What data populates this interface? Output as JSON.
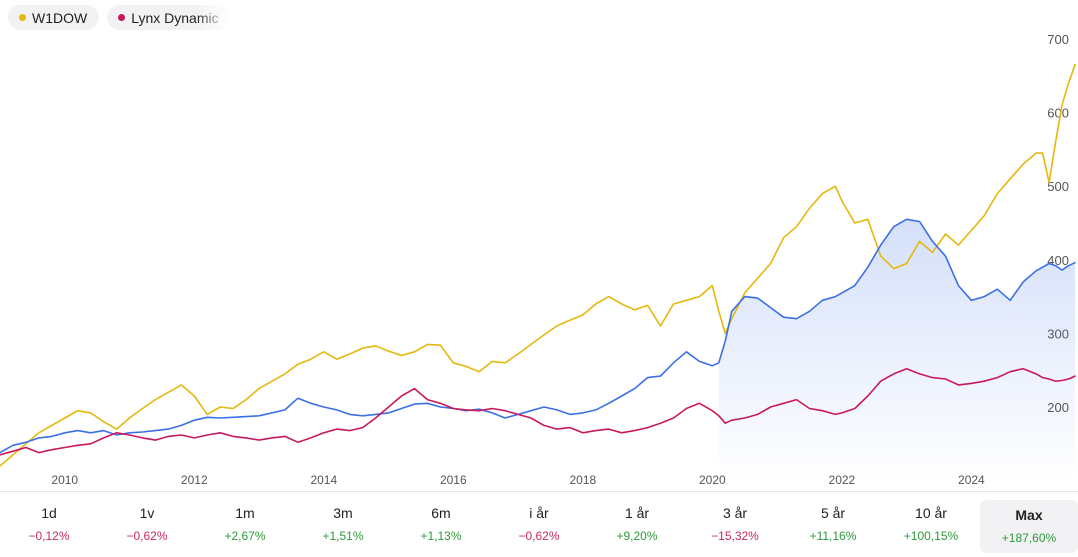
{
  "legend": [
    {
      "name": "W1DOW",
      "color": "#e5b80b"
    },
    {
      "name": "Lynx Dynamic",
      "color": "#c8195e"
    }
  ],
  "colors": {
    "w1dow": "#e5b80b",
    "lynx": "#c8195e",
    "blue": "#3b6fe6",
    "negative": "#c42a5c",
    "positive": "#2e9a3a"
  },
  "periods": [
    {
      "label": "1d",
      "change": "−0,12%",
      "sign": "neg"
    },
    {
      "label": "1v",
      "change": "−0,62%",
      "sign": "neg"
    },
    {
      "label": "1m",
      "change": "+2,67%",
      "sign": "pos"
    },
    {
      "label": "3m",
      "change": "+1,51%",
      "sign": "pos"
    },
    {
      "label": "6m",
      "change": "+1,13%",
      "sign": "pos"
    },
    {
      "label": "i år",
      "change": "−0,62%",
      "sign": "neg"
    },
    {
      "label": "1 år",
      "change": "+9,20%",
      "sign": "pos"
    },
    {
      "label": "3 år",
      "change": "−15,32%",
      "sign": "neg"
    },
    {
      "label": "5 år",
      "change": "+11,16%",
      "sign": "pos"
    },
    {
      "label": "10 år",
      "change": "+100,15%",
      "sign": "pos"
    },
    {
      "label": "Max",
      "change": "+187,60%",
      "sign": "pos",
      "active": true
    }
  ],
  "chart_data": {
    "type": "line",
    "x_ticks": [
      "2010",
      "2012",
      "2014",
      "2016",
      "2018",
      "2020",
      "2022",
      "2024"
    ],
    "y_ticks": [
      200,
      300,
      400,
      500,
      600,
      700
    ],
    "ylim": [
      100,
      720
    ],
    "xlim": [
      2009.0,
      2025.6
    ],
    "grid": false,
    "legend_position": "top-left",
    "series": [
      {
        "name": "W1DOW",
        "color": "#e5b80b",
        "points": [
          [
            2009.0,
            120
          ],
          [
            2009.2,
            135
          ],
          [
            2009.4,
            150
          ],
          [
            2009.6,
            165
          ],
          [
            2009.8,
            175
          ],
          [
            2010.0,
            185
          ],
          [
            2010.2,
            195
          ],
          [
            2010.4,
            192
          ],
          [
            2010.6,
            180
          ],
          [
            2010.8,
            170
          ],
          [
            2011.0,
            185
          ],
          [
            2011.2,
            198
          ],
          [
            2011.4,
            210
          ],
          [
            2011.6,
            220
          ],
          [
            2011.8,
            230
          ],
          [
            2012.0,
            215
          ],
          [
            2012.2,
            190
          ],
          [
            2012.4,
            200
          ],
          [
            2012.6,
            198
          ],
          [
            2012.8,
            210
          ],
          [
            2013.0,
            225
          ],
          [
            2013.2,
            235
          ],
          [
            2013.4,
            245
          ],
          [
            2013.6,
            258
          ],
          [
            2013.8,
            265
          ],
          [
            2014.0,
            275
          ],
          [
            2014.2,
            265
          ],
          [
            2014.4,
            272
          ],
          [
            2014.6,
            280
          ],
          [
            2014.8,
            283
          ],
          [
            2015.0,
            276
          ],
          [
            2015.2,
            270
          ],
          [
            2015.4,
            275
          ],
          [
            2015.6,
            285
          ],
          [
            2015.8,
            284
          ],
          [
            2016.0,
            260
          ],
          [
            2016.2,
            255
          ],
          [
            2016.4,
            248
          ],
          [
            2016.6,
            262
          ],
          [
            2016.8,
            260
          ],
          [
            2017.0,
            272
          ],
          [
            2017.2,
            285
          ],
          [
            2017.4,
            298
          ],
          [
            2017.6,
            310
          ],
          [
            2017.8,
            318
          ],
          [
            2018.0,
            325
          ],
          [
            2018.2,
            340
          ],
          [
            2018.4,
            350
          ],
          [
            2018.6,
            340
          ],
          [
            2018.8,
            332
          ],
          [
            2019.0,
            338
          ],
          [
            2019.2,
            310
          ],
          [
            2019.4,
            340
          ],
          [
            2019.6,
            345
          ],
          [
            2019.8,
            350
          ],
          [
            2020.0,
            365
          ],
          [
            2020.1,
            330
          ],
          [
            2020.2,
            300
          ],
          [
            2020.3,
            320
          ],
          [
            2020.5,
            355
          ],
          [
            2020.7,
            375
          ],
          [
            2020.9,
            395
          ],
          [
            2021.1,
            430
          ],
          [
            2021.3,
            445
          ],
          [
            2021.5,
            470
          ],
          [
            2021.7,
            490
          ],
          [
            2021.9,
            500
          ],
          [
            2022.0,
            480
          ],
          [
            2022.2,
            450
          ],
          [
            2022.4,
            455
          ],
          [
            2022.6,
            405
          ],
          [
            2022.8,
            388
          ],
          [
            2023.0,
            395
          ],
          [
            2023.2,
            425
          ],
          [
            2023.4,
            410
          ],
          [
            2023.6,
            435
          ],
          [
            2023.8,
            420
          ],
          [
            2024.0,
            440
          ],
          [
            2024.2,
            460
          ],
          [
            2024.4,
            490
          ],
          [
            2024.6,
            510
          ],
          [
            2024.8,
            530
          ],
          [
            2025.0,
            545
          ],
          [
            2025.1,
            545
          ],
          [
            2025.2,
            505
          ],
          [
            2025.3,
            560
          ],
          [
            2025.4,
            610
          ],
          [
            2025.5,
            640
          ],
          [
            2025.6,
            665
          ]
        ]
      },
      {
        "name": "",
        "color": "#3b6fe6",
        "points": [
          [
            2009.0,
            138
          ],
          [
            2009.2,
            148
          ],
          [
            2009.4,
            152
          ],
          [
            2009.6,
            158
          ],
          [
            2009.8,
            160
          ],
          [
            2010.0,
            165
          ],
          [
            2010.2,
            168
          ],
          [
            2010.4,
            165
          ],
          [
            2010.6,
            168
          ],
          [
            2010.8,
            162
          ],
          [
            2011.0,
            165
          ],
          [
            2011.2,
            166
          ],
          [
            2011.4,
            168
          ],
          [
            2011.6,
            170
          ],
          [
            2011.8,
            175
          ],
          [
            2012.0,
            182
          ],
          [
            2012.2,
            186
          ],
          [
            2012.4,
            185
          ],
          [
            2012.6,
            186
          ],
          [
            2012.8,
            187
          ],
          [
            2013.0,
            188
          ],
          [
            2013.2,
            192
          ],
          [
            2013.4,
            196
          ],
          [
            2013.6,
            212
          ],
          [
            2013.8,
            205
          ],
          [
            2014.0,
            200
          ],
          [
            2014.2,
            196
          ],
          [
            2014.4,
            190
          ],
          [
            2014.6,
            188
          ],
          [
            2014.8,
            190
          ],
          [
            2015.0,
            192
          ],
          [
            2015.2,
            198
          ],
          [
            2015.4,
            204
          ],
          [
            2015.6,
            205
          ],
          [
            2015.8,
            200
          ],
          [
            2016.0,
            198
          ],
          [
            2016.2,
            195
          ],
          [
            2016.4,
            197
          ],
          [
            2016.6,
            192
          ],
          [
            2016.8,
            185
          ],
          [
            2017.0,
            190
          ],
          [
            2017.2,
            195
          ],
          [
            2017.4,
            200
          ],
          [
            2017.6,
            196
          ],
          [
            2017.8,
            190
          ],
          [
            2018.0,
            192
          ],
          [
            2018.2,
            196
          ],
          [
            2018.4,
            205
          ],
          [
            2018.6,
            215
          ],
          [
            2018.8,
            225
          ],
          [
            2019.0,
            240
          ],
          [
            2019.2,
            242
          ],
          [
            2019.4,
            260
          ],
          [
            2019.6,
            275
          ],
          [
            2019.8,
            262
          ],
          [
            2020.0,
            256
          ],
          [
            2020.1,
            260
          ],
          [
            2020.2,
            290
          ],
          [
            2020.3,
            330
          ],
          [
            2020.5,
            350
          ],
          [
            2020.7,
            348
          ],
          [
            2020.9,
            335
          ],
          [
            2021.1,
            322
          ],
          [
            2021.3,
            320
          ],
          [
            2021.5,
            330
          ],
          [
            2021.7,
            345
          ],
          [
            2021.9,
            350
          ],
          [
            2022.0,
            355
          ],
          [
            2022.2,
            365
          ],
          [
            2022.4,
            390
          ],
          [
            2022.6,
            420
          ],
          [
            2022.8,
            445
          ],
          [
            2023.0,
            455
          ],
          [
            2023.2,
            452
          ],
          [
            2023.4,
            425
          ],
          [
            2023.6,
            405
          ],
          [
            2023.8,
            365
          ],
          [
            2024.0,
            345
          ],
          [
            2024.2,
            350
          ],
          [
            2024.4,
            360
          ],
          [
            2024.6,
            345
          ],
          [
            2024.8,
            370
          ],
          [
            2025.0,
            385
          ],
          [
            2025.1,
            390
          ],
          [
            2025.2,
            395
          ],
          [
            2025.3,
            392
          ],
          [
            2025.4,
            386
          ],
          [
            2025.5,
            392
          ],
          [
            2025.6,
            396
          ]
        ]
      },
      {
        "name": "Lynx Dynamic",
        "color": "#c8195e",
        "points": [
          [
            2009.0,
            135
          ],
          [
            2009.2,
            140
          ],
          [
            2009.4,
            145
          ],
          [
            2009.6,
            138
          ],
          [
            2009.8,
            142
          ],
          [
            2010.0,
            145
          ],
          [
            2010.2,
            148
          ],
          [
            2010.4,
            150
          ],
          [
            2010.6,
            158
          ],
          [
            2010.8,
            165
          ],
          [
            2011.0,
            162
          ],
          [
            2011.2,
            158
          ],
          [
            2011.4,
            155
          ],
          [
            2011.6,
            160
          ],
          [
            2011.8,
            162
          ],
          [
            2012.0,
            158
          ],
          [
            2012.2,
            162
          ],
          [
            2012.4,
            165
          ],
          [
            2012.6,
            160
          ],
          [
            2012.8,
            158
          ],
          [
            2013.0,
            155
          ],
          [
            2013.2,
            158
          ],
          [
            2013.4,
            160
          ],
          [
            2013.6,
            152
          ],
          [
            2013.8,
            158
          ],
          [
            2014.0,
            165
          ],
          [
            2014.2,
            170
          ],
          [
            2014.4,
            168
          ],
          [
            2014.6,
            172
          ],
          [
            2014.8,
            185
          ],
          [
            2015.0,
            200
          ],
          [
            2015.2,
            215
          ],
          [
            2015.4,
            225
          ],
          [
            2015.6,
            210
          ],
          [
            2015.8,
            205
          ],
          [
            2016.0,
            198
          ],
          [
            2016.2,
            196
          ],
          [
            2016.4,
            195
          ],
          [
            2016.6,
            198
          ],
          [
            2016.8,
            195
          ],
          [
            2017.0,
            190
          ],
          [
            2017.2,
            185
          ],
          [
            2017.4,
            175
          ],
          [
            2017.6,
            170
          ],
          [
            2017.8,
            172
          ],
          [
            2018.0,
            165
          ],
          [
            2018.2,
            168
          ],
          [
            2018.4,
            170
          ],
          [
            2018.6,
            165
          ],
          [
            2018.8,
            168
          ],
          [
            2019.0,
            172
          ],
          [
            2019.2,
            178
          ],
          [
            2019.4,
            185
          ],
          [
            2019.6,
            198
          ],
          [
            2019.8,
            205
          ],
          [
            2020.0,
            195
          ],
          [
            2020.1,
            188
          ],
          [
            2020.2,
            178
          ],
          [
            2020.3,
            182
          ],
          [
            2020.5,
            185
          ],
          [
            2020.7,
            190
          ],
          [
            2020.9,
            200
          ],
          [
            2021.1,
            205
          ],
          [
            2021.3,
            210
          ],
          [
            2021.5,
            198
          ],
          [
            2021.7,
            195
          ],
          [
            2021.9,
            190
          ],
          [
            2022.0,
            192
          ],
          [
            2022.2,
            198
          ],
          [
            2022.4,
            215
          ],
          [
            2022.6,
            235
          ],
          [
            2022.8,
            245
          ],
          [
            2023.0,
            252
          ],
          [
            2023.2,
            245
          ],
          [
            2023.4,
            240
          ],
          [
            2023.6,
            238
          ],
          [
            2023.8,
            230
          ],
          [
            2024.0,
            232
          ],
          [
            2024.2,
            235
          ],
          [
            2024.4,
            240
          ],
          [
            2024.6,
            248
          ],
          [
            2024.8,
            252
          ],
          [
            2025.0,
            245
          ],
          [
            2025.1,
            240
          ],
          [
            2025.2,
            238
          ],
          [
            2025.3,
            235
          ],
          [
            2025.4,
            236
          ],
          [
            2025.5,
            238
          ],
          [
            2025.6,
            242
          ]
        ]
      }
    ]
  }
}
